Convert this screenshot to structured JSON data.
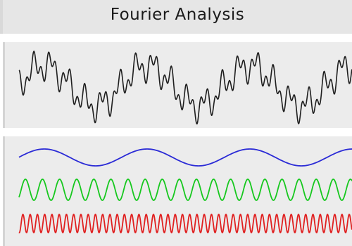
{
  "title": "Fourier Analysis",
  "colors": {
    "composite": "#1e1e1e",
    "wave_low": "#2b2bd6",
    "wave_mid": "#16c81e",
    "wave_high": "#e02020",
    "panel_bg": "#ececec",
    "title_bg": "#e6e6e6"
  }
}
